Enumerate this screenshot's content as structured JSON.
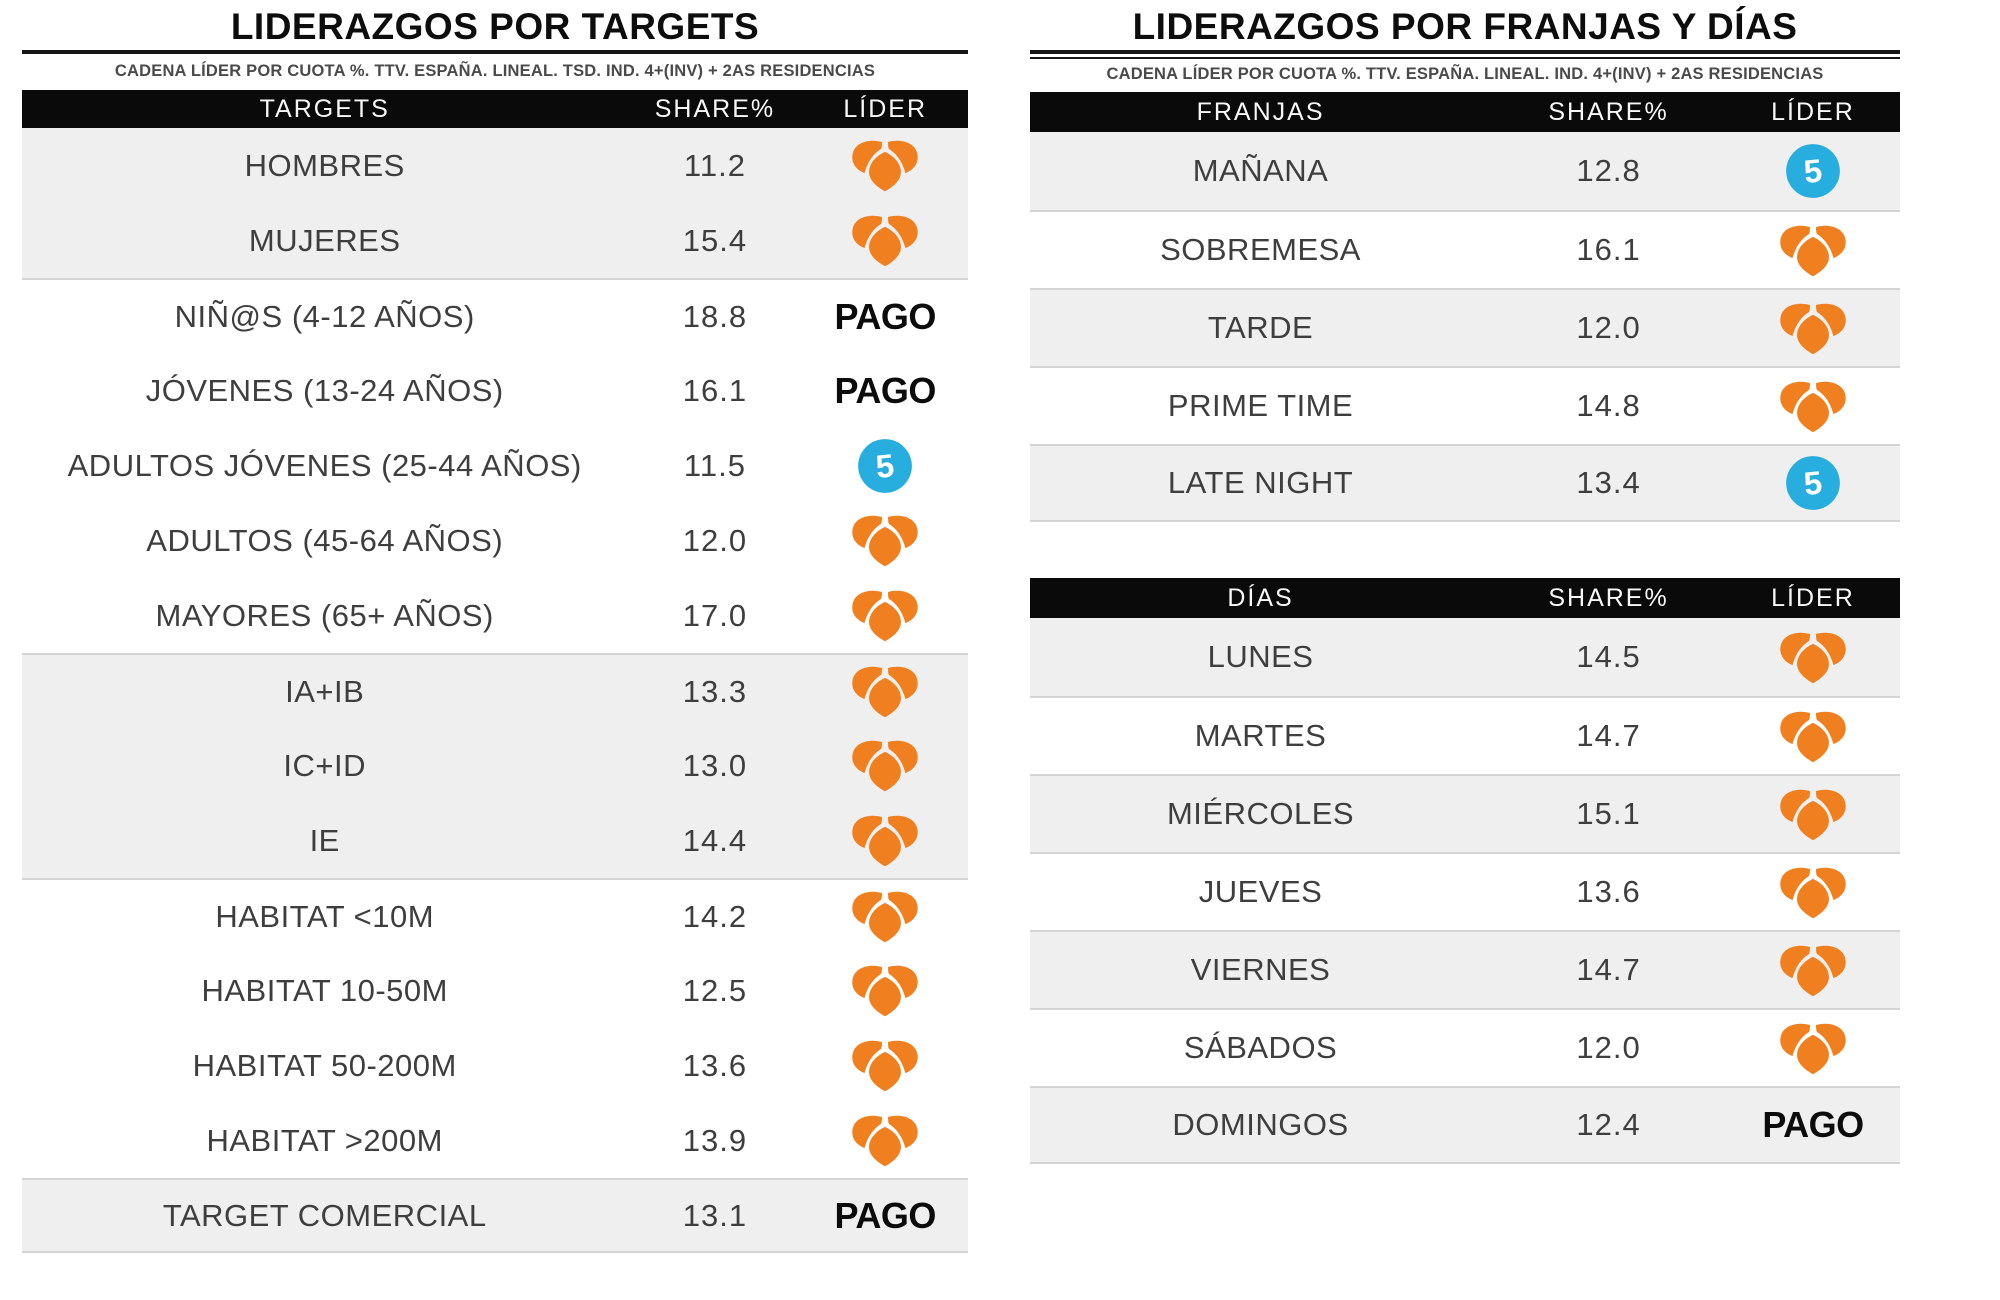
{
  "colors": {
    "antena3_orange": "#F0801F",
    "telecinco_blue": "#27AEDF",
    "row_shade_gray": "#EFEFEF",
    "divider_gray": "#D4D4D4",
    "header_bar_black": "#0A0A0A",
    "header_text_white": "#F7F7F7",
    "body_text_gray": "#3E3E3E",
    "pago_black": "#0C0C0C"
  },
  "labels": {
    "pago": "PAGO"
  },
  "leader_names": {
    "antena3": "Antena 3",
    "telecinco": "Telecinco",
    "pago": "PAGO"
  },
  "left_table": {
    "title": "LIDERAZGOS POR TARGETS",
    "subtitle": "CADENA LÍDER POR CUOTA %. TTV. ESPAÑA. LINEAL. TSD. IND. 4+(INV) + 2AS RESIDENCIAS",
    "columns": [
      "TARGETS",
      "SHARE%",
      "LÍDER"
    ],
    "rows": [
      {
        "label": "HOMBRES",
        "share": "11.2",
        "leader": "antena3",
        "shaded": true
      },
      {
        "label": "MUJERES",
        "share": "15.4",
        "leader": "antena3",
        "shaded": true
      },
      {
        "label": "NIÑ@S (4-12 AÑOS)",
        "share": "18.8",
        "leader": "pago",
        "shaded": false
      },
      {
        "label": "JÓVENES (13-24 AÑOS)",
        "share": "16.1",
        "leader": "pago",
        "shaded": false
      },
      {
        "label": "ADULTOS JÓVENES (25-44 AÑOS)",
        "share": "11.5",
        "leader": "telecinco",
        "shaded": false
      },
      {
        "label": "ADULTOS (45-64 AÑOS)",
        "share": "12.0",
        "leader": "antena3",
        "shaded": false
      },
      {
        "label": "MAYORES (65+ AÑOS)",
        "share": "17.0",
        "leader": "antena3",
        "shaded": false
      },
      {
        "label": "IA+IB",
        "share": "13.3",
        "leader": "antena3",
        "shaded": true
      },
      {
        "label": "IC+ID",
        "share": "13.0",
        "leader": "antena3",
        "shaded": true
      },
      {
        "label": "IE",
        "share": "14.4",
        "leader": "antena3",
        "shaded": true
      },
      {
        "label": "HABITAT <10M",
        "share": "14.2",
        "leader": "antena3",
        "shaded": false
      },
      {
        "label": "HABITAT 10-50M",
        "share": "12.5",
        "leader": "antena3",
        "shaded": false
      },
      {
        "label": "HABITAT 50-200M",
        "share": "13.6",
        "leader": "antena3",
        "shaded": false
      },
      {
        "label": "HABITAT >200M",
        "share": "13.9",
        "leader": "antena3",
        "shaded": false
      },
      {
        "label": "TARGET COMERCIAL",
        "share": "13.1",
        "leader": "pago",
        "shaded": true
      }
    ]
  },
  "right_panel": {
    "title": "LIDERAZGOS POR FRANJAS Y DÍAS",
    "subtitle": "CADENA LÍDER POR CUOTA %. TTV. ESPAÑA. LINEAL. IND. 4+(INV) + 2AS RESIDENCIAS",
    "franjas_table": {
      "columns": [
        "FRANJAS",
        "SHARE%",
        "LÍDER"
      ],
      "rows": [
        {
          "label": "MAÑANA",
          "share": "12.8",
          "leader": "telecinco",
          "shaded": true
        },
        {
          "label": "SOBREMESA",
          "share": "16.1",
          "leader": "antena3",
          "shaded": false
        },
        {
          "label": "TARDE",
          "share": "12.0",
          "leader": "antena3",
          "shaded": true
        },
        {
          "label": "PRIME TIME",
          "share": "14.8",
          "leader": "antena3",
          "shaded": false
        },
        {
          "label": "LATE NIGHT",
          "share": "13.4",
          "leader": "telecinco",
          "shaded": true
        }
      ]
    },
    "dias_table": {
      "columns": [
        "DÍAS",
        "SHARE%",
        "LÍDER"
      ],
      "rows": [
        {
          "label": "LUNES",
          "share": "14.5",
          "leader": "antena3",
          "shaded": true
        },
        {
          "label": "MARTES",
          "share": "14.7",
          "leader": "antena3",
          "shaded": false
        },
        {
          "label": "MIÉRCOLES",
          "share": "15.1",
          "leader": "antena3",
          "shaded": true
        },
        {
          "label": "JUEVES",
          "share": "13.6",
          "leader": "antena3",
          "shaded": false
        },
        {
          "label": "VIERNES",
          "share": "14.7",
          "leader": "antena3",
          "shaded": true
        },
        {
          "label": "SÁBADOS",
          "share": "12.0",
          "leader": "antena3",
          "shaded": false
        },
        {
          "label": "DOMINGOS",
          "share": "12.4",
          "leader": "pago",
          "shaded": true
        }
      ]
    }
  }
}
